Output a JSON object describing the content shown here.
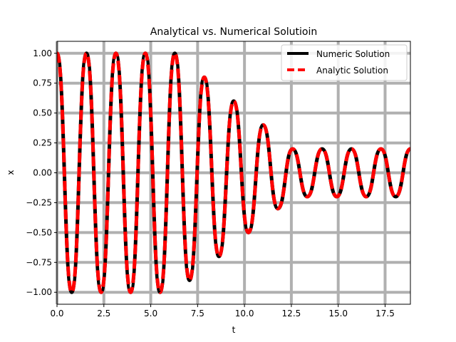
{
  "chart_data": {
    "type": "line",
    "title": "Analytical vs. Numerical Solutioin",
    "xlabel": "t",
    "ylabel": "x",
    "xlim": [
      0,
      18.85
    ],
    "ylim": [
      -1.1,
      1.1
    ],
    "xticks": [
      0.0,
      2.5,
      5.0,
      7.5,
      10.0,
      12.5,
      15.0,
      17.5
    ],
    "xtick_labels": [
      "0.0",
      "2.5",
      "5.0",
      "7.5",
      "10.0",
      "12.5",
      "15.0",
      "17.5"
    ],
    "yticks": [
      -1.0,
      -0.75,
      -0.5,
      -0.25,
      0.0,
      0.25,
      0.5,
      0.75,
      1.0
    ],
    "ytick_labels": [
      "−1.00",
      "−0.75",
      "−0.50",
      "−0.25",
      "0.00",
      "0.25",
      "0.50",
      "0.75",
      "1.00"
    ],
    "grid": true,
    "grid_color": "#b0b0b0",
    "legend_position": "top-right",
    "series": [
      {
        "name": "Numeric Solution",
        "color": "#000000",
        "style": "solid",
        "x": [
          0.0,
          0.785,
          1.571,
          2.356,
          3.142,
          3.927,
          4.712,
          5.498,
          6.283,
          7.069,
          7.854,
          8.639,
          9.425,
          10.21,
          10.996,
          11.781,
          12.566,
          13.352,
          14.137,
          14.923,
          15.708,
          16.493,
          17.279,
          18.064,
          18.85
        ],
        "y": [
          1.0,
          -1.0,
          1.0,
          -1.0,
          1.0,
          -1.0,
          1.0,
          -1.0,
          1.0,
          -0.9,
          0.8,
          -0.7,
          0.6,
          -0.5,
          0.4,
          -0.3,
          0.2,
          -0.2,
          0.2,
          -0.2,
          0.2,
          -0.2,
          0.2,
          -0.2,
          0.2
        ]
      },
      {
        "name": "Analytic Solution",
        "color": "#ff0000",
        "style": "dashed",
        "x": [
          0.0,
          0.785,
          1.571,
          2.356,
          3.142,
          3.927,
          4.712,
          5.498,
          6.283,
          7.069,
          7.854,
          8.639,
          9.425,
          10.21,
          10.996,
          11.781,
          12.566,
          13.352,
          14.137,
          14.923,
          15.708,
          16.493,
          17.279,
          18.064,
          18.85
        ],
        "y": [
          1.0,
          -1.0,
          1.0,
          -1.0,
          1.0,
          -1.0,
          1.0,
          -1.0,
          1.0,
          -0.9,
          0.8,
          -0.7,
          0.6,
          -0.5,
          0.4,
          -0.3,
          0.2,
          -0.2,
          0.2,
          -0.2,
          0.2,
          -0.2,
          0.2,
          -0.2,
          0.2
        ]
      }
    ]
  }
}
